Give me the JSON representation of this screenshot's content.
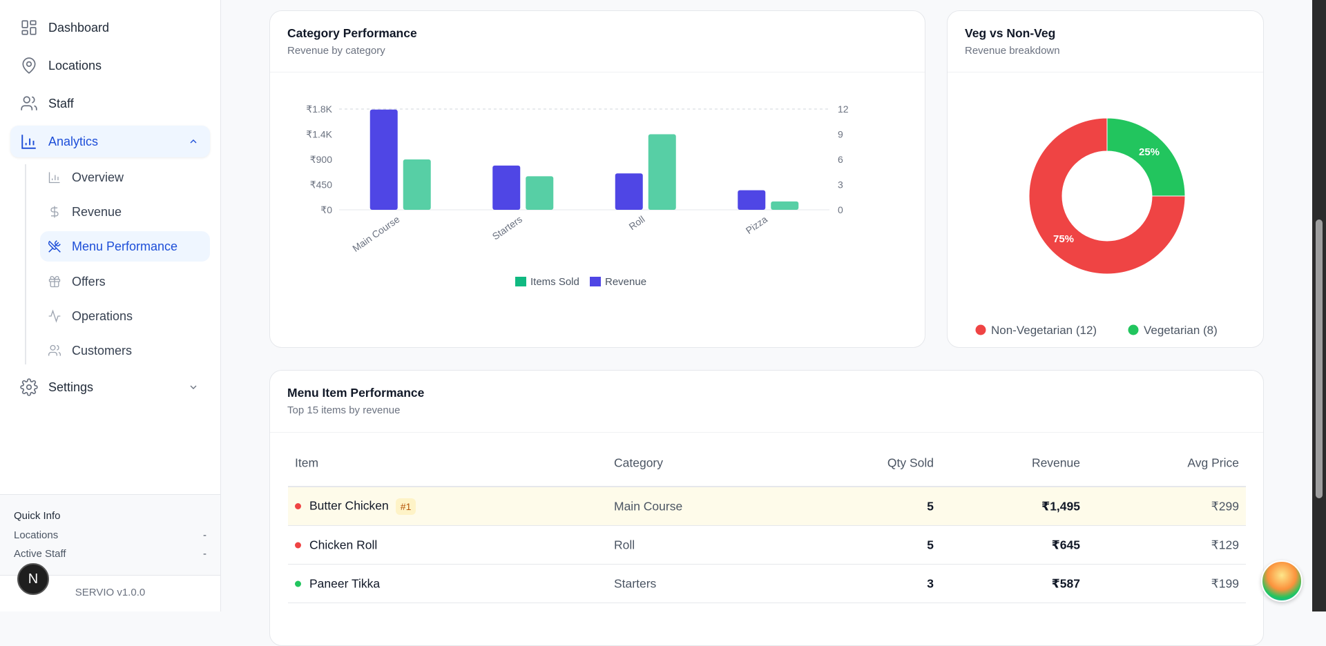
{
  "sidebar": {
    "items": [
      {
        "label": "Dashboard",
        "icon": "grid-icon"
      },
      {
        "label": "Locations",
        "icon": "map-pin-icon"
      },
      {
        "label": "Staff",
        "icon": "users-icon"
      },
      {
        "label": "Analytics",
        "icon": "bar-chart-icon",
        "expanded": true
      },
      {
        "label": "Settings",
        "icon": "gear-icon"
      }
    ],
    "analytics_sub": [
      {
        "label": "Overview",
        "icon": "bar-chart-icon"
      },
      {
        "label": "Revenue",
        "icon": "dollar-icon"
      },
      {
        "label": "Menu Performance",
        "icon": "utensils-crossed-icon",
        "active": true
      },
      {
        "label": "Offers",
        "icon": "gift-icon"
      },
      {
        "label": "Operations",
        "icon": "activity-icon"
      },
      {
        "label": "Customers",
        "icon": "users-icon"
      }
    ],
    "quick_info": {
      "title": "Quick Info",
      "rows": [
        {
          "label": "Locations",
          "value": "-"
        },
        {
          "label": "Active Staff",
          "value": "-"
        }
      ]
    },
    "version": "SERVIO v1.0.0",
    "badge_letter": "N"
  },
  "category_card": {
    "title": "Category Performance",
    "subtitle": "Revenue by category"
  },
  "veg_card": {
    "title": "Veg vs Non-Veg",
    "subtitle": "Revenue breakdown"
  },
  "menu_card": {
    "title": "Menu Item Performance",
    "subtitle": "Top 15 items by revenue",
    "columns": [
      "Item",
      "Category",
      "Qty Sold",
      "Revenue",
      "Avg Price"
    ],
    "rows": [
      {
        "item": "Butter Chicken",
        "badge": "#1",
        "veg": false,
        "category": "Main Course",
        "qty": "5",
        "revenue": "₹1,495",
        "avg": "₹299"
      },
      {
        "item": "Chicken Roll",
        "veg": false,
        "category": "Roll",
        "qty": "5",
        "revenue": "₹645",
        "avg": "₹129"
      },
      {
        "item": "Paneer Tikka",
        "veg": true,
        "category": "Starters",
        "qty": "3",
        "revenue": "₹587",
        "avg": "₹199"
      }
    ]
  },
  "colors": {
    "accent": "#1d4ed8",
    "revenue": "#4f46e5",
    "items_sold": "#10b981",
    "non_veg": "#ef4444",
    "veg": "#22c55e",
    "highlight_row": "#fefbea"
  },
  "chart_data": [
    {
      "type": "bar",
      "categories": [
        "Main Course",
        "Starters",
        "Roll",
        "Pizza"
      ],
      "series": [
        {
          "name": "Revenue",
          "axis": "left",
          "values": [
            1790,
            790,
            650,
            350
          ]
        },
        {
          "name": "Items Sold",
          "axis": "right",
          "values": [
            6,
            4,
            9,
            1
          ]
        }
      ],
      "left_ticks": [
        "₹0",
        "₹450",
        "₹900",
        "₹1.4K",
        "₹1.8K"
      ],
      "left_ylim": [
        0,
        1800
      ],
      "right_ticks": [
        "0",
        "3",
        "6",
        "9",
        "12"
      ],
      "right_ylim": [
        0,
        12
      ],
      "legend": [
        "Items Sold",
        "Revenue"
      ],
      "legend_position": "bottom",
      "grid": "top dashed line only"
    },
    {
      "type": "pie",
      "donut": true,
      "slices": [
        {
          "name": "Non-Vegetarian (12)",
          "value": 75,
          "label": "75%"
        },
        {
          "name": "Vegetarian (8)",
          "value": 25,
          "label": "25%"
        }
      ],
      "legend_position": "bottom"
    }
  ]
}
